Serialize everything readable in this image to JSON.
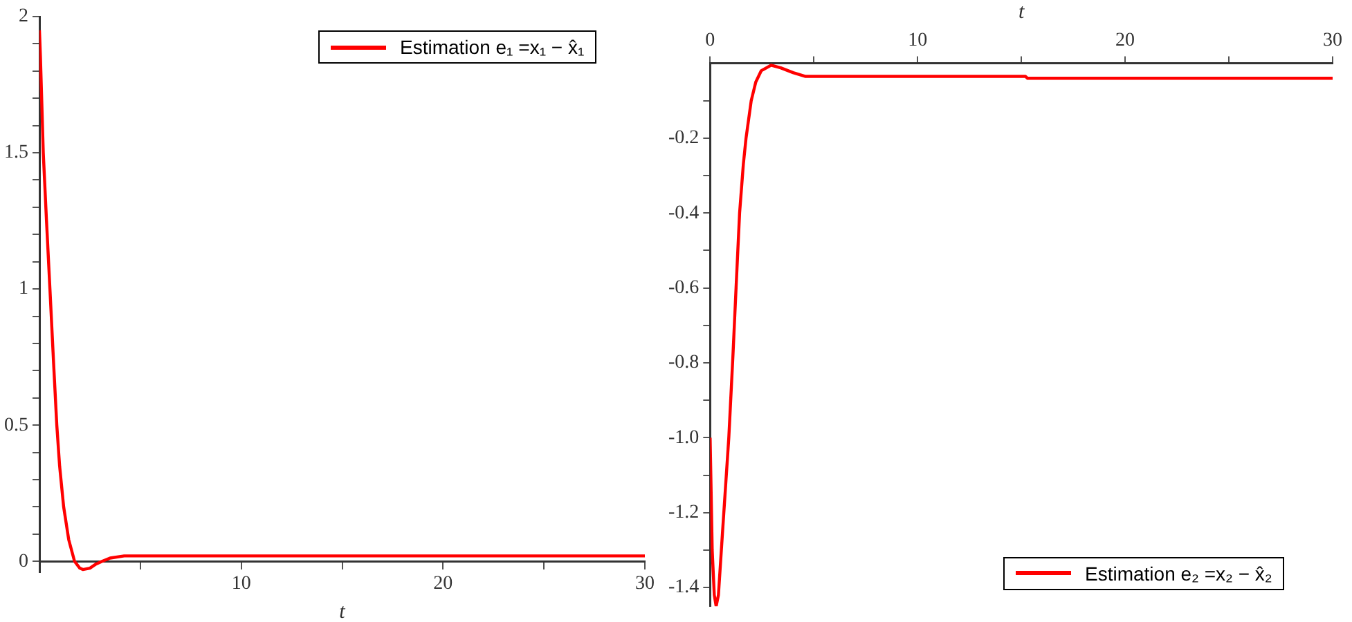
{
  "chart_data": [
    {
      "type": "line",
      "xlabel": "t",
      "legend": "top right",
      "marker": "none",
      "grid": false,
      "xlim": [
        0,
        30
      ],
      "ylim": [
        -0.04,
        2
      ],
      "xticks": [
        {
          "value": 5,
          "label": null
        },
        10,
        {
          "value": 15,
          "label": null
        },
        20,
        {
          "value": 25,
          "label": null
        },
        30
      ],
      "yticks": [
        0,
        {
          "value": 0.1,
          "label": null
        },
        {
          "value": 0.2,
          "label": null
        },
        {
          "value": 0.3,
          "label": null
        },
        {
          "value": 0.4,
          "label": null
        },
        0.5,
        {
          "value": 0.6,
          "label": null
        },
        {
          "value": 0.7,
          "label": null
        },
        {
          "value": 0.8,
          "label": null
        },
        {
          "value": 0.9,
          "label": null
        },
        1,
        {
          "value": 1.1,
          "label": null
        },
        {
          "value": 1.2,
          "label": null
        },
        {
          "value": 1.3,
          "label": null
        },
        {
          "value": 1.4,
          "label": null
        },
        1.5,
        {
          "value": 1.6,
          "label": null
        },
        {
          "value": 1.7,
          "label": null
        },
        {
          "value": 1.8,
          "label": null
        },
        {
          "value": 1.9,
          "label": null
        },
        2
      ],
      "series": [
        {
          "name": "Estimation e₁ =x₁ − x̂₁",
          "color": "#ff0000",
          "x": [
            0,
            0.05,
            0.19,
            0.35,
            0.52,
            0.7,
            0.86,
            1.0,
            1.2,
            1.45,
            1.74,
            2.0,
            2.15,
            2.5,
            2.8,
            3.1,
            3.5,
            4.2,
            30
          ],
          "values": [
            1.95,
            1.85,
            1.5,
            1.25,
            1.0,
            0.73,
            0.5,
            0.35,
            0.2,
            0.08,
            0,
            -0.025,
            -0.03,
            -0.025,
            -0.01,
            0,
            0.012,
            0.02,
            0.02
          ]
        }
      ]
    },
    {
      "type": "line",
      "xlabel": "t",
      "legend": "bottom right",
      "marker": "none",
      "grid": false,
      "xlim": [
        0,
        30
      ],
      "ylim": [
        -1.45,
        0
      ],
      "xticks": [
        0,
        {
          "value": 5,
          "label": null
        },
        10,
        {
          "value": 15,
          "label": null
        },
        20,
        {
          "value": 25,
          "label": null
        },
        30
      ],
      "yticks": [
        {
          "value": -0.1,
          "label": null
        },
        -0.2,
        {
          "value": -0.3,
          "label": null
        },
        -0.4,
        {
          "value": -0.5,
          "label": null
        },
        -0.6,
        {
          "value": -0.7,
          "label": null
        },
        -0.8,
        {
          "value": -0.9,
          "label": null
        },
        {
          "value": -1,
          "label": "-1.0"
        },
        {
          "value": -1.1,
          "label": null
        },
        -1.2,
        {
          "value": -1.3,
          "label": null
        },
        -1.4
      ],
      "series": [
        {
          "name": "Estimation e₂ =x₂ − x̂₂",
          "color": "#ff0000",
          "x": [
            0,
            0.1,
            0.2,
            0.29,
            0.4,
            0.6,
            0.9,
            1.1,
            1.25,
            1.42,
            1.6,
            1.73,
            1.98,
            2.2,
            2.46,
            2.94,
            3.4,
            4.0,
            4.6,
            15.2,
            15.3,
            30
          ],
          "values": [
            -1.0,
            -1.3,
            -1.42,
            -1.45,
            -1.42,
            -1.25,
            -1.0,
            -0.78,
            -0.6,
            -0.4,
            -0.27,
            -0.2,
            -0.1,
            -0.05,
            -0.02,
            -0.005,
            -0.012,
            -0.025,
            -0.035,
            -0.035,
            -0.04,
            -0.04
          ]
        }
      ]
    }
  ]
}
